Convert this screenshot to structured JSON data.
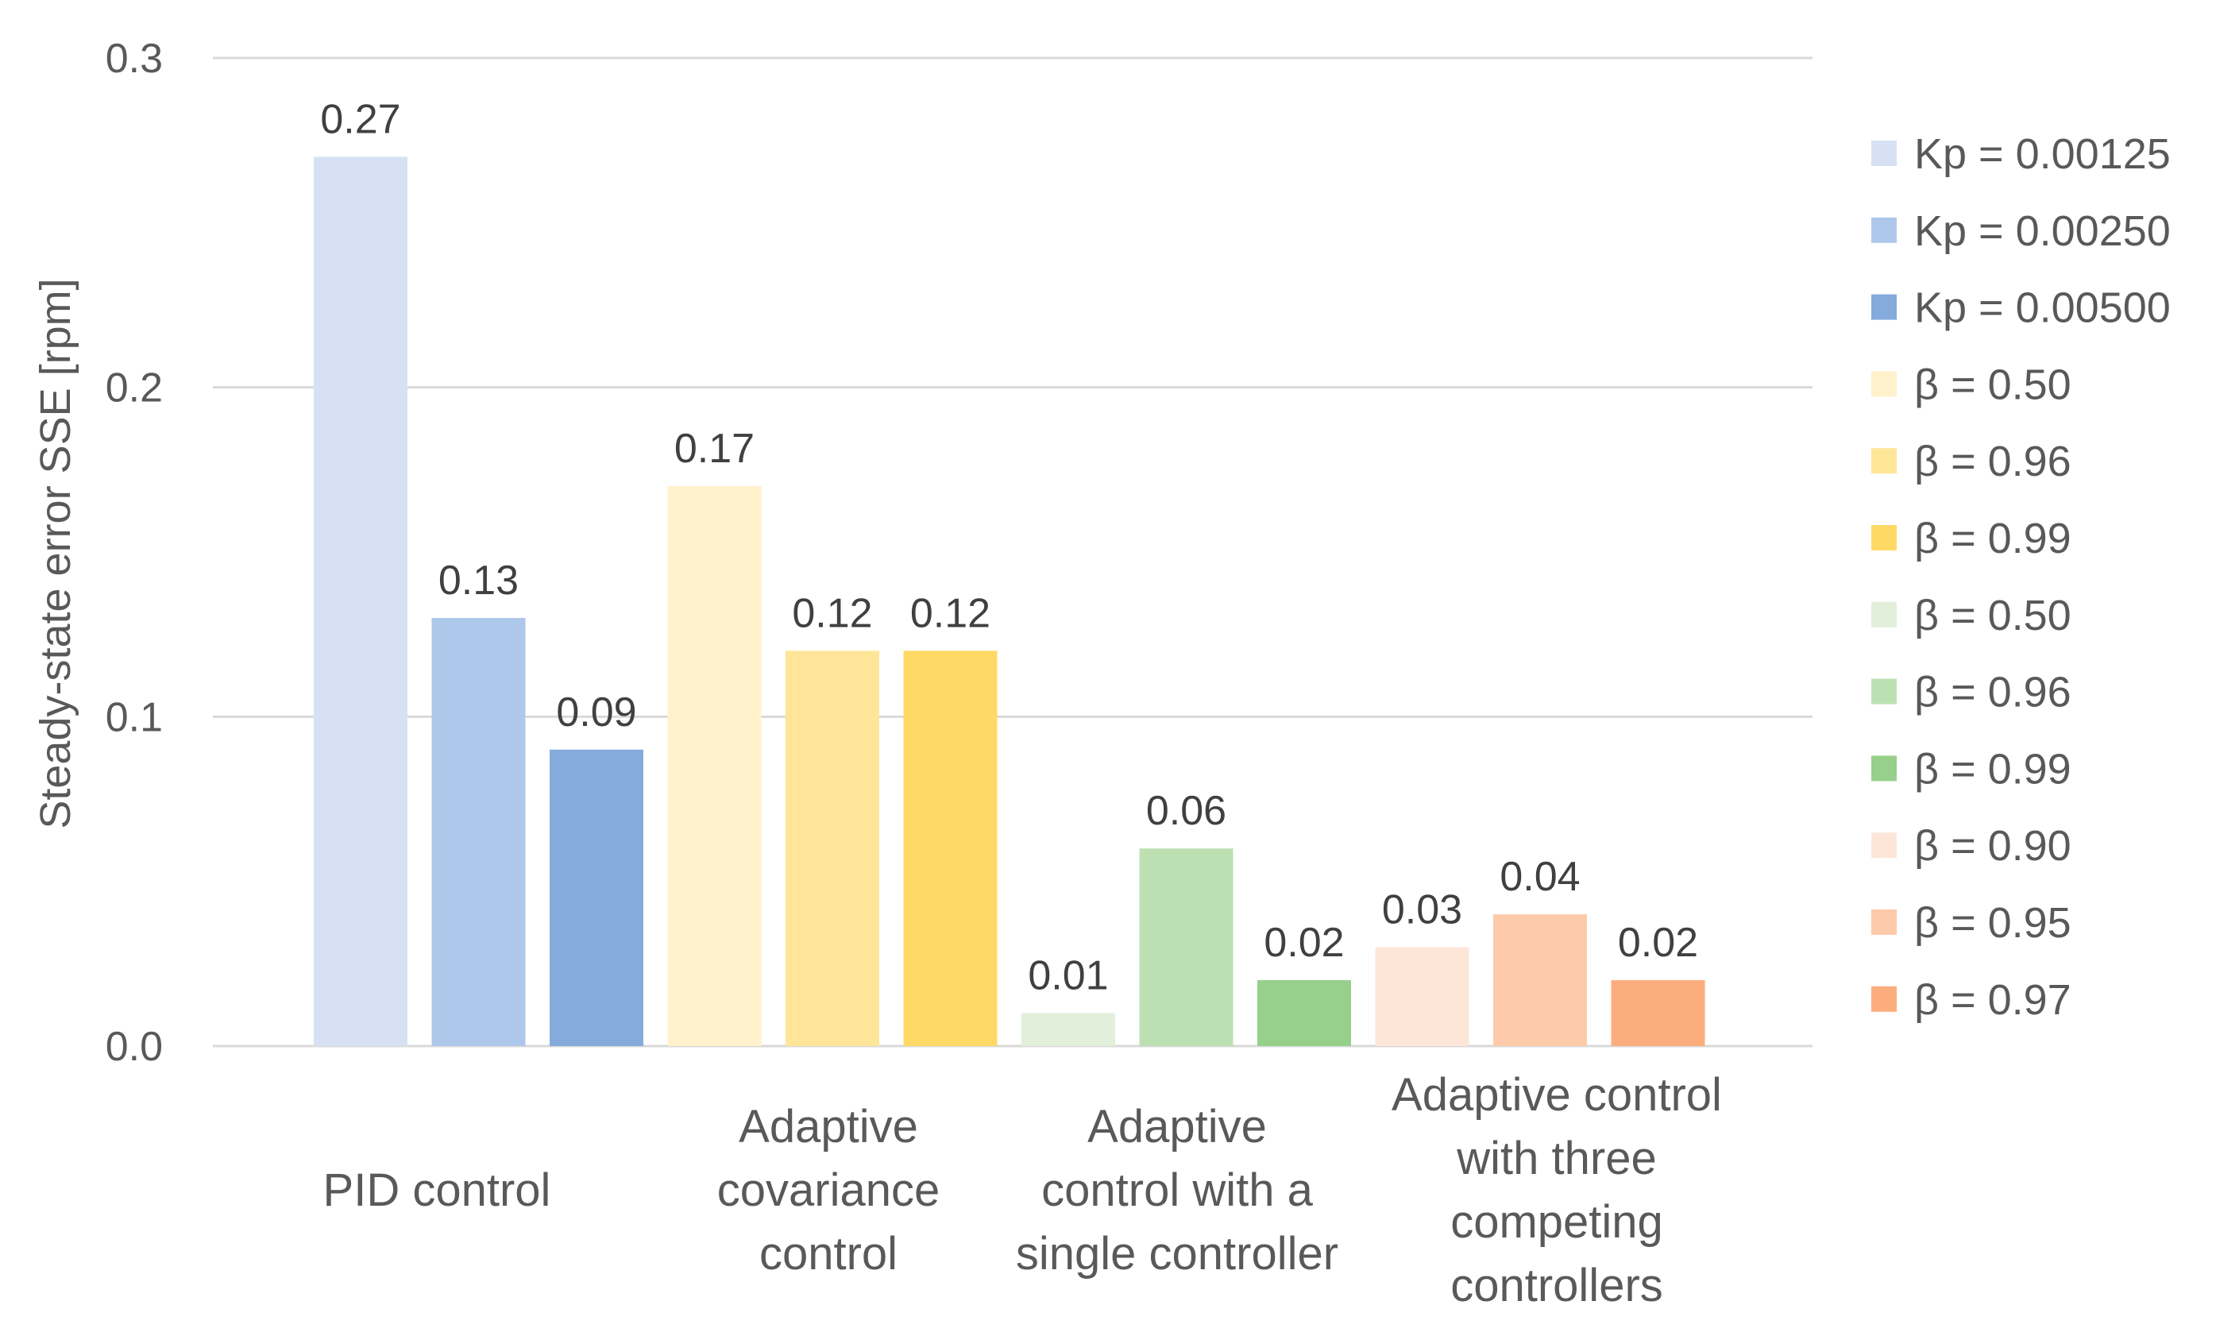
{
  "chart_data": {
    "type": "bar",
    "title": "",
    "xlabel": "",
    "ylabel": "Steady-state error SSE [rpm]",
    "ylim": [
      0,
      0.3
    ],
    "yticks": [
      "0.0",
      "0.1",
      "0.2",
      "0.3"
    ],
    "ytick_values": [
      0,
      0.1,
      0.2,
      0.3
    ],
    "grid": true,
    "legend_position": "right",
    "groups": [
      {
        "category_lines": [
          "PID control"
        ],
        "bars": [
          {
            "series": "Kp = 0.00125",
            "value": 0.27,
            "label": "0.27",
            "color": "#d6e2f3"
          },
          {
            "series": "Kp = 0.00250",
            "value": 0.13,
            "label": "0.13",
            "color": "#adc8ea"
          },
          {
            "series": "Kp = 0.00500",
            "value": 0.09,
            "label": "0.09",
            "color": "#84abdc"
          }
        ]
      },
      {
        "category_lines": [
          "Adaptive",
          "covariance",
          "control"
        ],
        "bars": [
          {
            "series": "β = 0.50",
            "value": 0.17,
            "label": "0.17",
            "color": "#fff2cc"
          },
          {
            "series": "β = 0.96",
            "value": 0.12,
            "label": "0.12",
            "color": "#ffe598"
          },
          {
            "series": "β = 0.99",
            "value": 0.12,
            "label": "0.12",
            "color": "#ffd966"
          }
        ]
      },
      {
        "category_lines": [
          "Adaptive",
          "control with a",
          "single controller"
        ],
        "bars": [
          {
            "series": "β = 0.50",
            "value": 0.01,
            "label": "0.01",
            "color": "#e2efda"
          },
          {
            "series": "β = 0.96",
            "value": 0.06,
            "label": "0.06",
            "color": "#bde0b3"
          },
          {
            "series": "β = 0.99",
            "value": 0.02,
            "label": "0.02",
            "color": "#96d08a"
          }
        ]
      },
      {
        "category_lines": [
          "Adaptive control",
          "with three",
          "competing",
          "controllers"
        ],
        "bars": [
          {
            "series": "β = 0.90",
            "value": 0.03,
            "label": "0.03",
            "color": "#fde6d8"
          },
          {
            "series": "β = 0.95",
            "value": 0.04,
            "label": "0.04",
            "color": "#fdcaa9"
          },
          {
            "series": "β = 0.97",
            "value": 0.02,
            "label": "0.02",
            "color": "#fcad7d"
          }
        ]
      }
    ],
    "legend": [
      {
        "label": "Kp = 0.00125",
        "color": "#d6e2f3"
      },
      {
        "label": "Kp = 0.00250",
        "color": "#adc8ea"
      },
      {
        "label": "Kp = 0.00500",
        "color": "#84abdc"
      },
      {
        "label": "β = 0.50",
        "color": "#fff2cc"
      },
      {
        "label": "β = 0.96",
        "color": "#ffe598"
      },
      {
        "label": "β = 0.99",
        "color": "#ffd966"
      },
      {
        "label": "β = 0.50",
        "color": "#e2efda"
      },
      {
        "label": "β = 0.96",
        "color": "#bde0b3"
      },
      {
        "label": "β = 0.99",
        "color": "#96d08a"
      },
      {
        "label": "β = 0.90",
        "color": "#fde6d8"
      },
      {
        "label": "β = 0.95",
        "color": "#fdcaa9"
      },
      {
        "label": "β = 0.97",
        "color": "#fcad7d"
      }
    ]
  }
}
